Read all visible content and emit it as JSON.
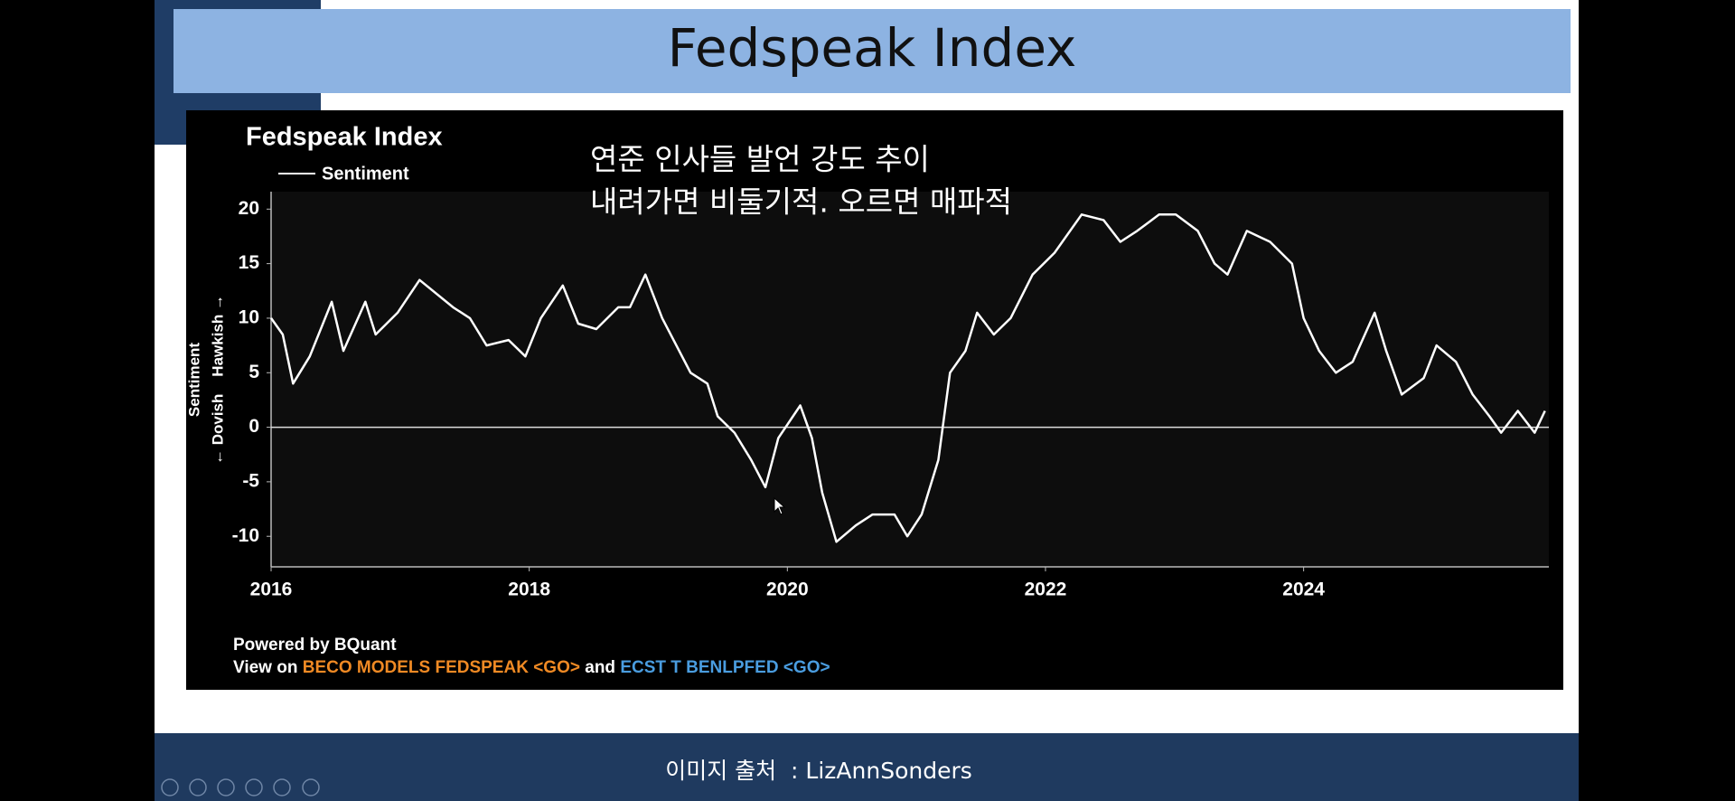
{
  "slide": {
    "title": "Fedspeak Index",
    "source": "이미지 출처  : LizAnnSonders"
  },
  "chart_data": {
    "type": "line",
    "title": "Fedspeak Index",
    "annotation": [
      "연준 인사들 발언 강도 추이",
      "내려가면 비둘기적. 오르면 매파적"
    ],
    "y_label": "Sentiment",
    "y_label_sub": "← Dovish    Hawkish →",
    "footer": [
      "Powered by BQuant",
      [
        {
          "text": "View on ",
          "color": "#ffffff"
        },
        {
          "text": "BECO MODELS FEDSPEAK <GO>",
          "color": "#f08a24"
        },
        {
          "text": " and ",
          "color": "#ffffff"
        },
        {
          "text": "ECST T BENLPFED <GO>",
          "color": "#4a9de0"
        }
      ]
    ],
    "reference_line": 0,
    "xlim": [
      2016,
      2025.9
    ],
    "xticks": [
      2016,
      2018,
      2020,
      2022,
      2024
    ],
    "ylim": [
      -12.8,
      21.6
    ],
    "yticks": [
      -10,
      -5,
      0,
      5,
      10,
      15,
      20
    ],
    "series": [
      {
        "name": "Sentiment",
        "color": "#ffffff",
        "x": [
          2016.0,
          2016.09,
          2016.17,
          2016.3,
          2016.47,
          2016.56,
          2016.73,
          2016.81,
          2016.98,
          2017.15,
          2017.41,
          2017.54,
          2017.67,
          2017.84,
          2017.97,
          2018.09,
          2018.26,
          2018.38,
          2018.52,
          2018.69,
          2018.78,
          2018.9,
          2019.03,
          2019.25,
          2019.38,
          2019.46,
          2019.59,
          2019.72,
          2019.83,
          2019.93,
          2020.1,
          2020.19,
          2020.27,
          2020.38,
          2020.53,
          2020.66,
          2020.83,
          2020.93,
          2021.04,
          2021.17,
          2021.26,
          2021.38,
          2021.47,
          2021.6,
          2021.73,
          2021.9,
          2022.07,
          2022.28,
          2022.45,
          2022.58,
          2022.71,
          2022.88,
          2023.01,
          2023.18,
          2023.31,
          2023.41,
          2023.56,
          2023.74,
          2023.91,
          2024.0,
          2024.12,
          2024.25,
          2024.38,
          2024.55,
          2024.64,
          2024.76,
          2024.93,
          2025.03,
          2025.18,
          2025.31,
          2025.44,
          2025.53,
          2025.66,
          2025.79,
          2025.87
        ],
        "values": [
          10,
          8.5,
          4,
          6.5,
          11.5,
          7,
          11.5,
          8.5,
          10.5,
          13.5,
          11,
          10,
          7.5,
          8,
          6.5,
          10,
          13,
          9.5,
          9,
          11,
          11,
          14,
          10,
          5,
          4,
          1,
          -0.5,
          -3,
          -5.5,
          -1,
          2,
          -1,
          -6,
          -10.5,
          -9,
          -8,
          -8,
          -10,
          -8,
          -3,
          5,
          7,
          10.5,
          8.5,
          10,
          14,
          16,
          19.5,
          19,
          17,
          18,
          19.5,
          19.5,
          18,
          15,
          14,
          18,
          17,
          15,
          10,
          7,
          5,
          6,
          10.5,
          7,
          3,
          4.5,
          7.5,
          6,
          3,
          1,
          -0.5,
          1.5,
          -0.5,
          1.5
        ]
      }
    ]
  }
}
